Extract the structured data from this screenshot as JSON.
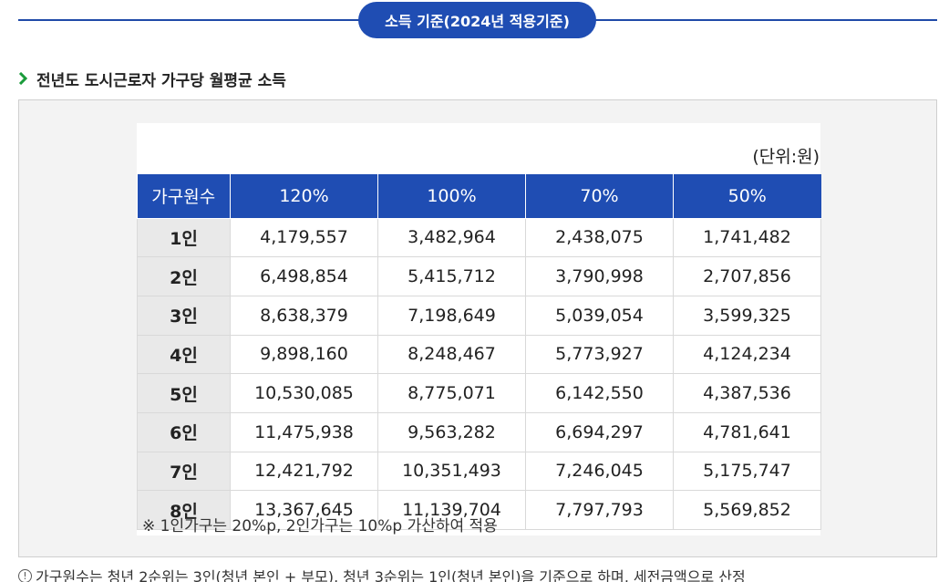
{
  "header": {
    "pill_label": "소득 기준(2024년 적용기준)"
  },
  "section": {
    "title": "전년도 도시근로자 가구당 월평균 소득"
  },
  "table": {
    "unit": "(단위:원)",
    "columns": [
      "가구원수",
      "120%",
      "100%",
      "70%",
      "50%"
    ],
    "rows": [
      [
        "1인",
        "4,179,557",
        "3,482,964",
        "2,438,075",
        "1,741,482"
      ],
      [
        "2인",
        "6,498,854",
        "5,415,712",
        "3,790,998",
        "2,707,856"
      ],
      [
        "3인",
        "8,638,379",
        "7,198,649",
        "5,039,054",
        "3,599,325"
      ],
      [
        "4인",
        "9,898,160",
        "8,248,467",
        "5,773,927",
        "4,124,234"
      ],
      [
        "5인",
        "10,530,085",
        "8,775,071",
        "6,142,550",
        "4,387,536"
      ],
      [
        "6인",
        "11,475,938",
        "9,563,282",
        "6,694,297",
        "4,781,641"
      ],
      [
        "7인",
        "12,421,792",
        "10,351,493",
        "7,246,045",
        "5,175,747"
      ],
      [
        "8인",
        "13,367,645",
        "11,139,704",
        "7,797,793",
        "5,569,852"
      ]
    ],
    "note": "※ 1인가구는 20%p, 2인가구는 10%p 가산하여 적용"
  },
  "footer": {
    "icon": "info-circle-icon",
    "text": "가구원수는 청년 2순위는 3인(청년 본인 + 부모), 청년 3순위는 1인(청년 본인)을 기준으로 하며, 세전금액으로 산정"
  },
  "colors": {
    "accent": "#1f4db3",
    "chevron": "#1a9b3a",
    "row_header_bg": "#e9e9e9",
    "panel_bg": "#f3f3f3"
  }
}
